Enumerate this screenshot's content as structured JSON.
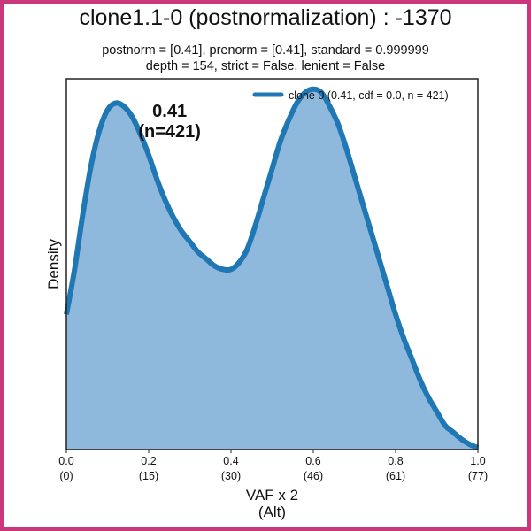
{
  "chart_data": {
    "type": "area",
    "title": "clone1.1-0 (postnormalization) : -1370",
    "subtitle_lines": [
      "postnorm = [0.41], prenorm = [0.41], standard = 0.999999",
      "depth = 154, strict = False, lenient = False"
    ],
    "xlabel_lines": [
      "VAF x 2",
      "(Alt)"
    ],
    "ylabel": "Density",
    "xlim": [
      0.0,
      1.0
    ],
    "ylim": [
      0,
      1.07
    ],
    "x_ticks": [
      0.0,
      0.2,
      0.4,
      0.6,
      0.8,
      1.0
    ],
    "x_tick_labels": [
      "0.0",
      "0.2",
      "0.4",
      "0.6",
      "0.8",
      "1.0"
    ],
    "x_tick_sublabels": [
      "(0)",
      "(15)",
      "(30)",
      "(46)",
      "(61)",
      "(77)"
    ],
    "grid": false,
    "legend_position": "top-right",
    "series": [
      {
        "name": "clone 0 (0.41, cdf = 0.0, n = 421)",
        "color": "#1f77b4",
        "fill_color": "#8fb9dc",
        "x": [
          0.0,
          0.02,
          0.04,
          0.06,
          0.08,
          0.1,
          0.12,
          0.14,
          0.16,
          0.18,
          0.2,
          0.22,
          0.24,
          0.26,
          0.28,
          0.3,
          0.32,
          0.34,
          0.36,
          0.38,
          0.4,
          0.42,
          0.44,
          0.46,
          0.48,
          0.5,
          0.52,
          0.54,
          0.56,
          0.58,
          0.6,
          0.62,
          0.64,
          0.66,
          0.68,
          0.7,
          0.72,
          0.74,
          0.76,
          0.78,
          0.8,
          0.82,
          0.84,
          0.86,
          0.88,
          0.9,
          0.92,
          0.94,
          0.96,
          0.98,
          1.0
        ],
        "y": [
          0.39,
          0.52,
          0.68,
          0.82,
          0.92,
          0.98,
          1.0,
          0.99,
          0.96,
          0.91,
          0.85,
          0.78,
          0.72,
          0.67,
          0.63,
          0.6,
          0.57,
          0.55,
          0.53,
          0.52,
          0.52,
          0.54,
          0.58,
          0.65,
          0.73,
          0.81,
          0.89,
          0.95,
          1.0,
          1.03,
          1.04,
          1.03,
          0.99,
          0.94,
          0.87,
          0.79,
          0.71,
          0.63,
          0.55,
          0.47,
          0.39,
          0.32,
          0.26,
          0.2,
          0.15,
          0.11,
          0.07,
          0.05,
          0.03,
          0.015,
          0.005
        ]
      }
    ],
    "annotations": [
      {
        "text_lines": [
          "0.41",
          "(n=421)"
        ],
        "x": 0.41,
        "y": 1.03
      }
    ]
  }
}
